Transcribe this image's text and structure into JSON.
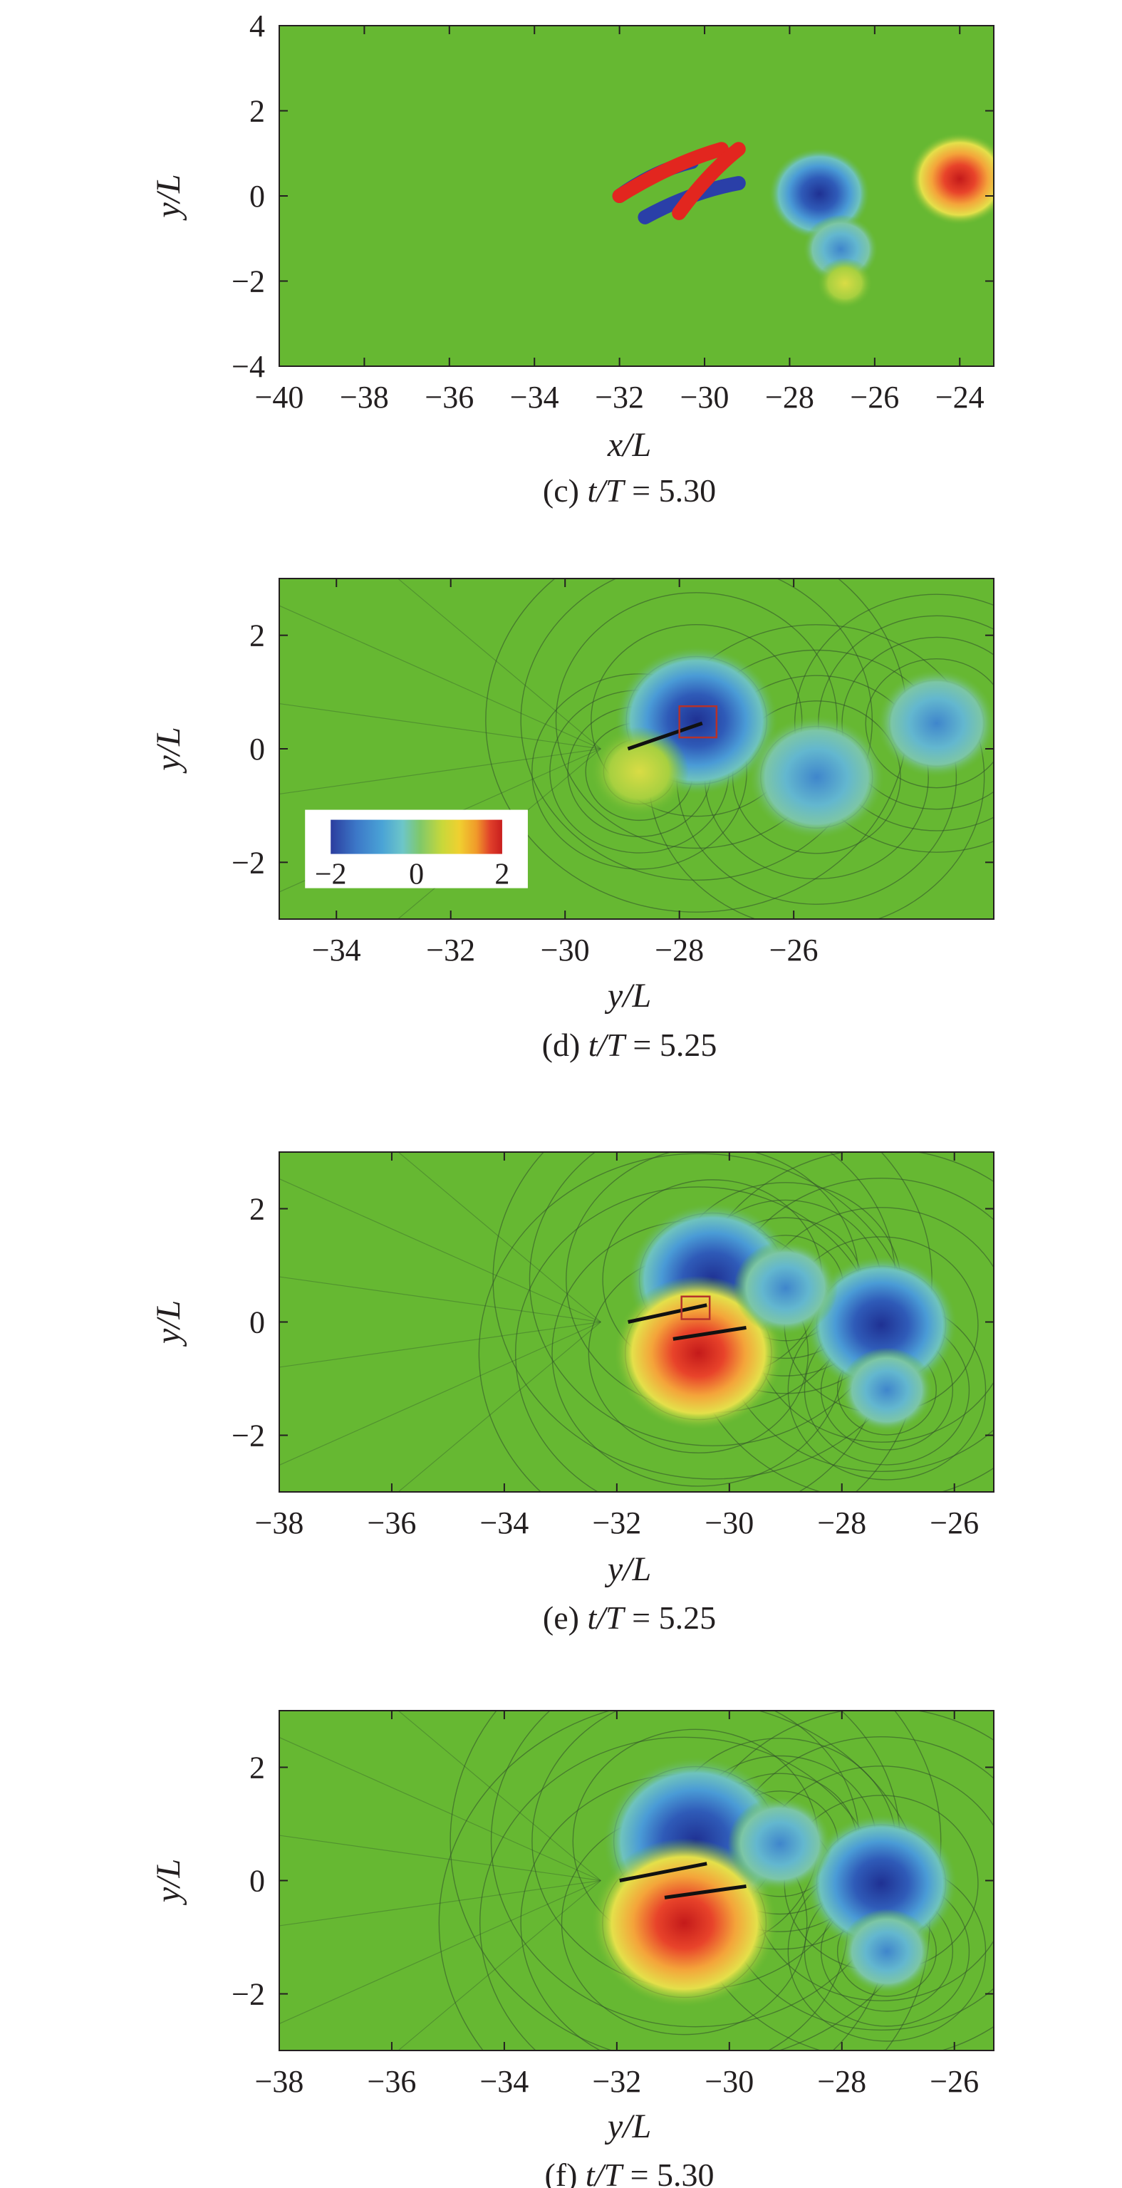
{
  "chart_data": [
    {
      "type": "heatmap",
      "panel": "c",
      "caption": {
        "prefix": "(c) ",
        "var": "t/T",
        "suffix": " = 5.30"
      },
      "xlabel": "x/L",
      "ylabel": "y/L",
      "xlim": [
        -40,
        -23.2
      ],
      "ylim": [
        -4,
        4
      ],
      "xticks": [
        -40,
        -38,
        -36,
        -34,
        -32,
        -30,
        -28,
        -26,
        -24
      ],
      "yticks": [
        -4,
        -2,
        0,
        2,
        4
      ],
      "xtick_labels": [
        "−40",
        "−38",
        "−36",
        "−34",
        "−32",
        "−30",
        "−28",
        "−26",
        "−24"
      ],
      "ytick_labels": [
        "−4",
        "−2",
        "0",
        "2",
        "4"
      ],
      "background_color": "#66b832",
      "features": [
        {
          "kind": "vortex-sheet",
          "sign": "negative",
          "x": [
            -32.0,
            -30.3
          ],
          "y": [
            0.0,
            0.8
          ]
        },
        {
          "kind": "vortex-sheet",
          "sign": "positive",
          "x": [
            -32.0,
            -29.6
          ],
          "y": [
            0.0,
            1.1
          ]
        },
        {
          "kind": "vortex-sheet",
          "sign": "negative",
          "x": [
            -31.4,
            -29.2
          ],
          "y": [
            -0.5,
            0.3
          ]
        },
        {
          "kind": "vortex-sheet",
          "sign": "positive",
          "x": [
            -30.6,
            -29.2
          ],
          "y": [
            -0.4,
            1.1
          ]
        },
        {
          "kind": "vortex",
          "sign": "negative",
          "x": -27.3,
          "y": 0.05,
          "strength": 1.0
        },
        {
          "kind": "vortex",
          "sign": "negative",
          "x": -26.8,
          "y": -1.25,
          "strength": 0.6
        },
        {
          "kind": "vortex",
          "sign": "positive",
          "x": -24.0,
          "y": 0.4,
          "strength": 1.0
        },
        {
          "kind": "vortex",
          "sign": "positive",
          "x": -26.7,
          "y": -2.05,
          "strength": 0.3
        }
      ]
    },
    {
      "type": "heatmap",
      "panel": "d",
      "caption": {
        "prefix": "(d) ",
        "var": "t/T",
        "suffix": " = 5.25"
      },
      "xlabel": "y/L",
      "ylabel": "y/L",
      "xlim": [
        -35,
        -22.5
      ],
      "ylim": [
        -3,
        3
      ],
      "xticks": [
        -34,
        -32,
        -30,
        -28,
        -26
      ],
      "yticks": [
        -2,
        0,
        2
      ],
      "xtick_labels": [
        "−34",
        "−32",
        "−30",
        "−28",
        "−26"
      ],
      "ytick_labels": [
        "−2",
        "0",
        "2"
      ],
      "background_color": "#66b832",
      "colorbar": {
        "min": -2,
        "max": 2,
        "ticks": [
          -2,
          0,
          2
        ],
        "tick_labels": [
          "−2",
          "0",
          "2"
        ],
        "colors": [
          "#2b3d9e",
          "#3c78c8",
          "#4aa3d6",
          "#6dc6c8",
          "#7fc86a",
          "#c8d83a",
          "#f0d030",
          "#f09a2a",
          "#e0402a",
          "#c81e1e"
        ]
      },
      "highlight_box": {
        "x": [
          -28.0,
          -27.35
        ],
        "y": [
          0.2,
          0.75
        ]
      },
      "features": [
        {
          "kind": "vortex",
          "sign": "negative",
          "x": -27.7,
          "y": 0.5,
          "strength": 0.95
        },
        {
          "kind": "vortex",
          "sign": "negative",
          "x": -25.6,
          "y": -0.5,
          "strength": 0.7
        },
        {
          "kind": "vortex",
          "sign": "negative",
          "x": -23.5,
          "y": 0.45,
          "strength": 0.55
        },
        {
          "kind": "vortex",
          "sign": "positive",
          "x": -28.7,
          "y": -0.4,
          "strength": 0.35
        }
      ]
    },
    {
      "type": "heatmap",
      "panel": "e",
      "caption": {
        "prefix": "(e) ",
        "var": "t/T",
        "suffix": " = 5.25"
      },
      "xlabel": "y/L",
      "ylabel": "y/L",
      "xlim": [
        -38,
        -25.3
      ],
      "ylim": [
        -3,
        3
      ],
      "xticks": [
        -38,
        -36,
        -34,
        -32,
        -30,
        -28,
        -26
      ],
      "yticks": [
        -2,
        0,
        2
      ],
      "xtick_labels": [
        "−38",
        "−36",
        "−34",
        "−32",
        "−30",
        "−28",
        "−26"
      ],
      "ytick_labels": [
        "−2",
        "0",
        "2"
      ],
      "background_color": "#66b832",
      "highlight_box": {
        "x": [
          -30.85,
          -30.35
        ],
        "y": [
          0.05,
          0.45
        ]
      },
      "features": [
        {
          "kind": "vortex",
          "sign": "negative",
          "x": -30.3,
          "y": 0.75,
          "strength": 1.0
        },
        {
          "kind": "vortex",
          "sign": "positive",
          "x": -30.55,
          "y": -0.55,
          "strength": 1.0
        },
        {
          "kind": "vortex",
          "sign": "negative",
          "x": -27.3,
          "y": -0.05,
          "strength": 0.85
        },
        {
          "kind": "vortex",
          "sign": "negative",
          "x": -29.0,
          "y": 0.6,
          "strength": 0.4
        },
        {
          "kind": "vortex",
          "sign": "negative",
          "x": -27.2,
          "y": -1.2,
          "strength": 0.3
        }
      ]
    },
    {
      "type": "heatmap",
      "panel": "f",
      "caption": {
        "prefix": "(f) ",
        "var": "t/T",
        "suffix": " = 5.30"
      },
      "xlabel": "y/L",
      "ylabel": "y/L",
      "xlim": [
        -38,
        -25.3
      ],
      "ylim": [
        -3,
        3
      ],
      "xticks": [
        -38,
        -36,
        -34,
        -32,
        -30,
        -28,
        -26
      ],
      "yticks": [
        -2,
        0,
        2
      ],
      "xtick_labels": [
        "−38",
        "−36",
        "−34",
        "−32",
        "−30",
        "−28",
        "−26"
      ],
      "ytick_labels": [
        "−2",
        "0",
        "2"
      ],
      "background_color": "#66b832",
      "features": [
        {
          "kind": "vortex",
          "sign": "negative",
          "x": -30.6,
          "y": 0.7,
          "strength": 1.15
        },
        {
          "kind": "vortex",
          "sign": "positive",
          "x": -30.8,
          "y": -0.75,
          "strength": 1.15
        },
        {
          "kind": "vortex",
          "sign": "negative",
          "x": -27.3,
          "y": -0.05,
          "strength": 0.85
        },
        {
          "kind": "vortex",
          "sign": "negative",
          "x": -29.1,
          "y": 0.65,
          "strength": 0.4
        },
        {
          "kind": "vortex",
          "sign": "negative",
          "x": -27.2,
          "y": -1.25,
          "strength": 0.3
        }
      ]
    }
  ]
}
